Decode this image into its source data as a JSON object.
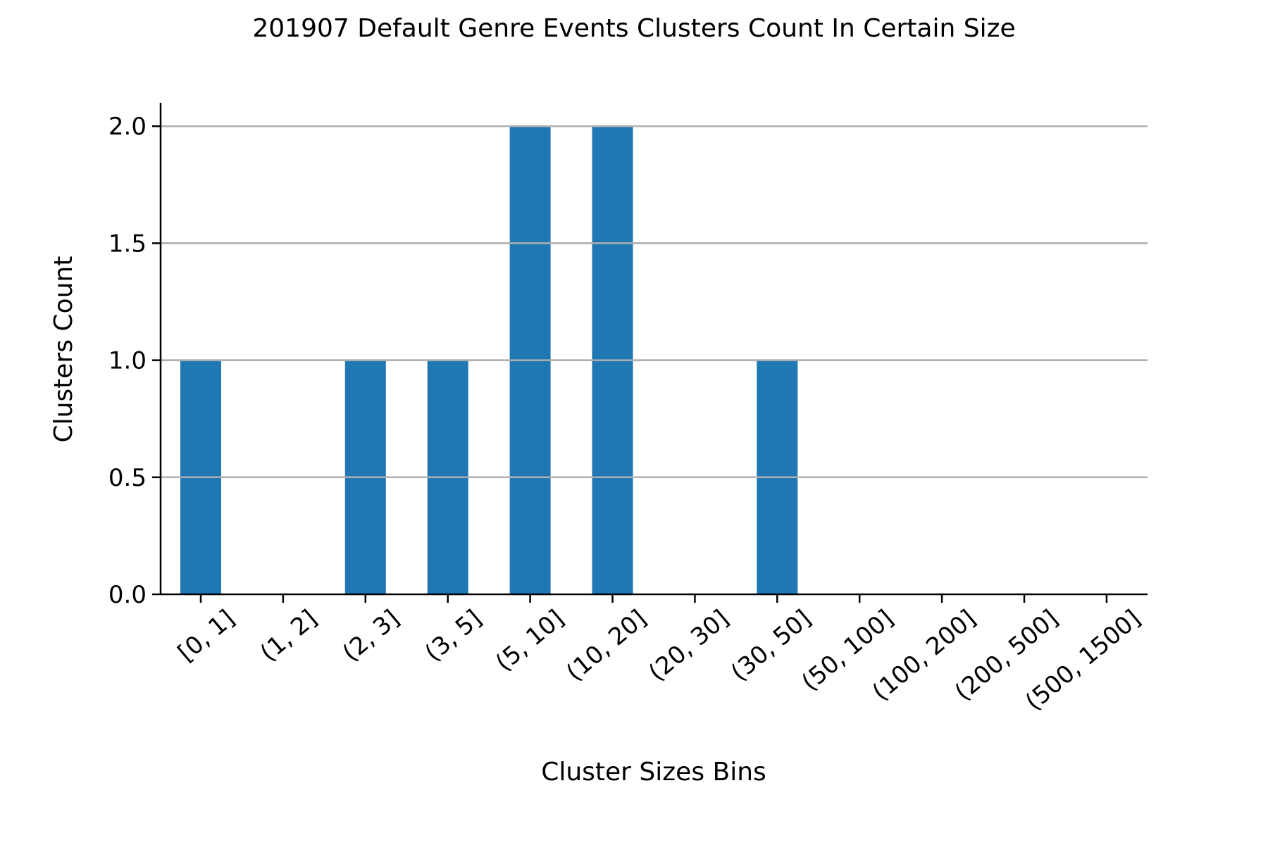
{
  "chart_data": {
    "type": "bar",
    "title": "201907 Default Genre Events Clusters Count In Certain Size",
    "xlabel": "Cluster Sizes Bins",
    "ylabel": "Clusters Count",
    "categories": [
      "[0, 1]",
      "(1, 2]",
      "(2, 3]",
      "(3, 5]",
      "(5, 10]",
      "(10, 20]",
      "(20, 30]",
      "(30, 50]",
      "(50, 100]",
      "(100, 200]",
      "(200, 500]",
      "(500, 1500]"
    ],
    "values": [
      1,
      0,
      1,
      1,
      2,
      2,
      0,
      1,
      0,
      0,
      0,
      0
    ],
    "ylim": [
      0,
      2.1
    ],
    "yticks": [
      "0.0",
      "0.5",
      "1.0",
      "1.5",
      "2.0"
    ],
    "grid": "horizontal",
    "bar_color": "#1f77b4",
    "grid_color": "#b0b0b0"
  }
}
